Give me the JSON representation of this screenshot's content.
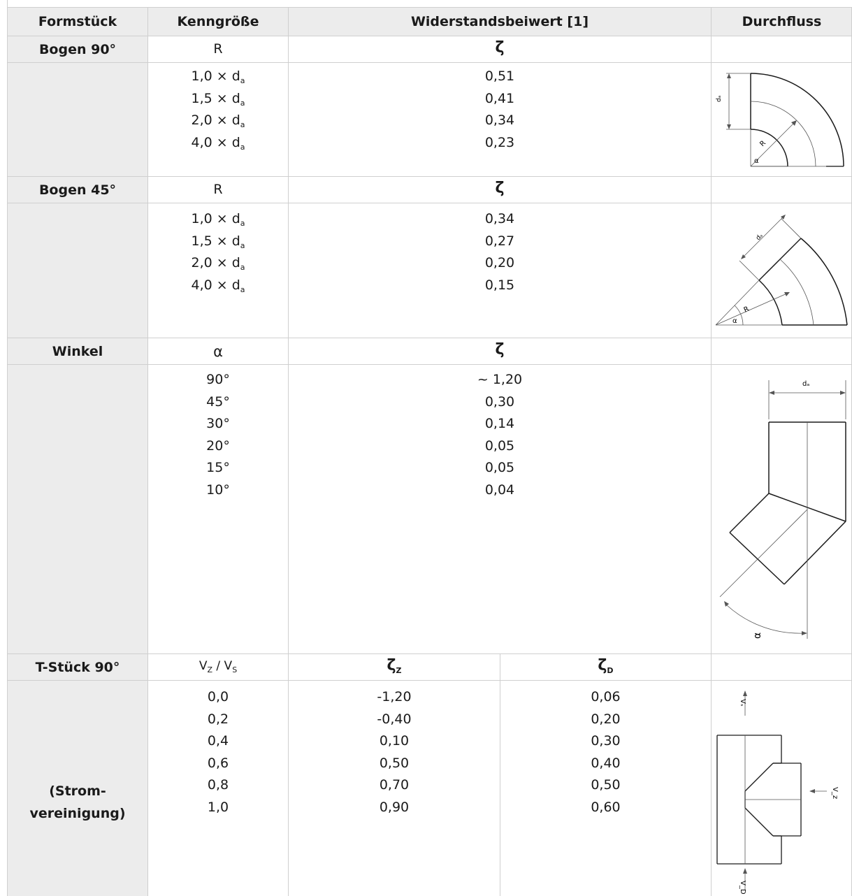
{
  "header": {
    "col1": "Formstück",
    "col2": "Kenngröße",
    "col3": "Widerstandsbeiwert [1]",
    "col4": "Durchfluss"
  },
  "bogen90": {
    "label": "Bogen 90°",
    "param": "R",
    "zeta": "ζ",
    "rows": [
      {
        "factor": "1,0 × d",
        "sub": "a",
        "value": "0,51"
      },
      {
        "factor": "1,5 × d",
        "sub": "a",
        "value": "0,41"
      },
      {
        "factor": "2,0 × d",
        "sub": "a",
        "value": "0,34"
      },
      {
        "factor": "4,0 × d",
        "sub": "a",
        "value": "0,23"
      }
    ],
    "diagram": {
      "da": "dₐ",
      "r": "R",
      "alpha": "α"
    }
  },
  "bogen45": {
    "label": "Bogen 45°",
    "param": "R",
    "zeta": "ζ",
    "rows": [
      {
        "factor": "1,0 × d",
        "sub": "a",
        "value": "0,34"
      },
      {
        "factor": "1,5 × d",
        "sub": "a",
        "value": "0,27"
      },
      {
        "factor": "2,0 × d",
        "sub": "a",
        "value": "0,20"
      },
      {
        "factor": "4,0 × d",
        "sub": "a",
        "value": "0,15"
      }
    ],
    "diagram": {
      "da": "dₐ",
      "r": "R",
      "alpha": "α"
    }
  },
  "winkel": {
    "label": "Winkel",
    "param": "α",
    "zeta": "ζ",
    "rows": [
      {
        "angle": "90°",
        "value": "~ 1,20"
      },
      {
        "angle": "45°",
        "value": "0,30"
      },
      {
        "angle": "30°",
        "value": "0,14"
      },
      {
        "angle": "20°",
        "value": "0,05"
      },
      {
        "angle": "15°",
        "value": "0,05"
      },
      {
        "angle": "10°",
        "value": "0,04"
      }
    ],
    "diagram": {
      "da": "dₐ",
      "alpha": "α"
    }
  },
  "tstueck": {
    "label": "T-Stück 90°",
    "sublabel_1": "(Strom-",
    "sublabel_2": "vereinigung)",
    "param_v1": "V",
    "param_v1_sub": "Z",
    "param_sep": " / ",
    "param_v2": "V",
    "param_v2_sub": "S",
    "zeta_z": "ζ",
    "zeta_z_sub": "Z",
    "zeta_d": "ζ",
    "zeta_d_sub": "D",
    "rows": [
      {
        "ratio": "0,0",
        "zz": "-1,20",
        "zd": "0,06"
      },
      {
        "ratio": "0,2",
        "zz": "-0,40",
        "zd": "0,20"
      },
      {
        "ratio": "0,4",
        "zz": "0,10",
        "zd": "0,30"
      },
      {
        "ratio": "0,6",
        "zz": "0,50",
        "zd": "0,40"
      },
      {
        "ratio": "0,8",
        "zz": "0,70",
        "zd": "0,50"
      },
      {
        "ratio": "1,0",
        "zz": "0,90",
        "zd": "0,60"
      }
    ],
    "diagram": {
      "vs": "Vₛ",
      "vz": "V_z",
      "vd": "V_D"
    }
  }
}
